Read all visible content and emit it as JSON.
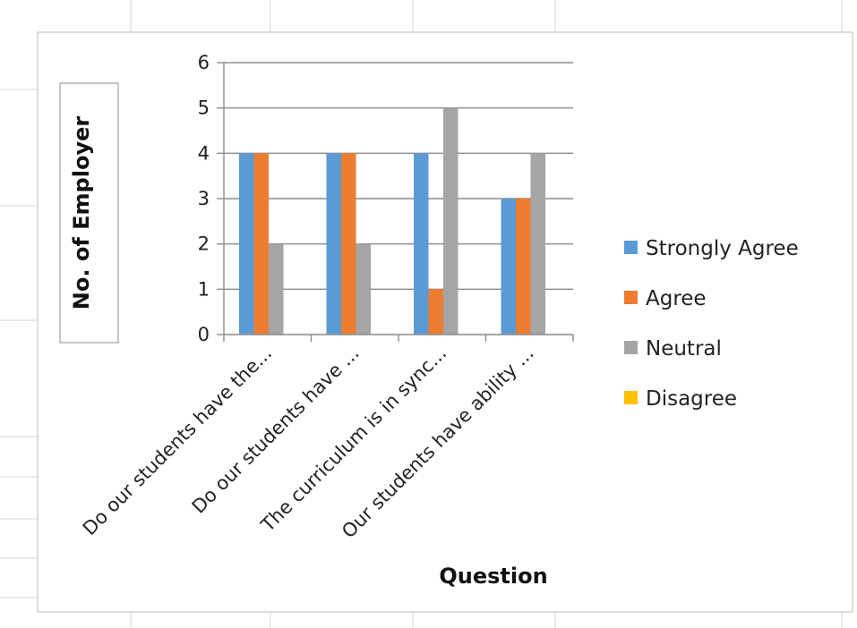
{
  "colors": {
    "strongly_agree": "#5B9BD5",
    "agree": "#ED7D31",
    "neutral": "#A5A5A5",
    "disagree": "#FFC000",
    "gridline": "#8c8c8c",
    "sheet_grid": "#d6d6d6",
    "chart_border": "#bdbdbd"
  },
  "chart_data": {
    "type": "bar",
    "xlabel": "Question",
    "ylabel": "No. of Employer",
    "ylim": [
      0,
      6
    ],
    "yticks": [
      "0",
      "1",
      "2",
      "3",
      "4",
      "5",
      "6"
    ],
    "grid": true,
    "legend_position": "right",
    "categories": [
      "Do our students have the...",
      "Do our students have ...",
      "The curriculum is in sync...",
      "Our students have ability ..."
    ],
    "series": [
      {
        "name": "Strongly Agree",
        "values": [
          4,
          4,
          4,
          3
        ]
      },
      {
        "name": "Agree",
        "values": [
          4,
          4,
          1,
          3
        ]
      },
      {
        "name": "Neutral",
        "values": [
          2,
          2,
          5,
          4
        ]
      },
      {
        "name": "Disagree",
        "values": [
          0,
          0,
          0,
          0
        ]
      }
    ]
  }
}
